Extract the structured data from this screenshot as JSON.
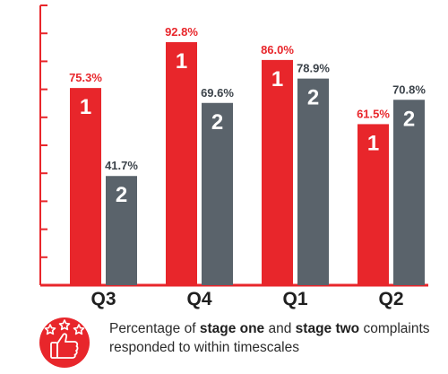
{
  "chart_data": {
    "type": "bar",
    "categories": [
      "Q3",
      "Q4",
      "Q1",
      "Q2"
    ],
    "series": [
      {
        "marker": "1",
        "color": "#e8262b",
        "values": [
          75.3,
          92.8,
          86.0,
          61.5
        ],
        "labels": [
          "75.3%",
          "92.8%",
          "86.0%",
          "61.5%"
        ]
      },
      {
        "marker": "2",
        "color": "#5a636b",
        "values": [
          41.7,
          69.6,
          78.9,
          70.8
        ],
        "labels": [
          "41.7%",
          "69.6%",
          "78.9%",
          "70.8%"
        ]
      }
    ],
    "ylim": [
      0,
      100
    ],
    "grid": false,
    "axis_color": "#e8262b"
  },
  "caption": {
    "part1": "Percentage of ",
    "bold1": "stage one",
    "part2": " and ",
    "bold2": "stage two",
    "part3": " complaints responded to within timescales"
  },
  "icon": "thumbs-up-stars-icon"
}
